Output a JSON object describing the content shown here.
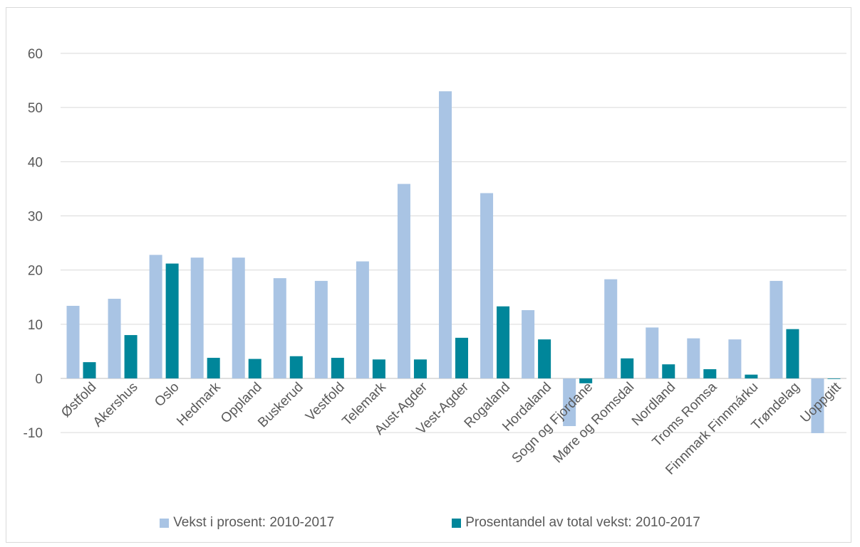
{
  "chart_data": {
    "type": "bar",
    "categories": [
      "Østfold",
      "Akershus",
      "Oslo",
      "Hedmark",
      "Oppland",
      "Buskerud",
      "Vestfold",
      "Telemark",
      "Aust-Agder",
      "Vest-Agder",
      "Rogaland",
      "Hordaland",
      "Sogn og Fjordane",
      "Møre og Romsdal",
      "Nordland",
      "Troms Romsa",
      "Finnmark Finnmárku",
      "Trøndelag",
      "Uoppgitt"
    ],
    "series": [
      {
        "name": "Vekst i prosent: 2010-2017",
        "color": "#a9c4e4",
        "values": [
          13.4,
          14.7,
          22.8,
          22.3,
          22.3,
          18.5,
          18.0,
          21.6,
          35.9,
          53.0,
          34.2,
          12.6,
          -8.8,
          18.3,
          9.4,
          7.4,
          7.2,
          18.0,
          -10.1
        ]
      },
      {
        "name": "Prosentandel av total vekst: 2010-2017",
        "color": "#00869a",
        "values": [
          3.0,
          8.0,
          21.2,
          3.8,
          3.6,
          4.1,
          3.8,
          3.5,
          3.5,
          7.5,
          13.3,
          7.2,
          -0.9,
          3.7,
          2.6,
          1.7,
          0.7,
          9.1,
          0.0
        ]
      }
    ],
    "ylim": [
      -10,
      60
    ],
    "yticks": [
      -10,
      0,
      10,
      20,
      30,
      40,
      50,
      60
    ],
    "grid": true,
    "legend_position": "bottom"
  }
}
